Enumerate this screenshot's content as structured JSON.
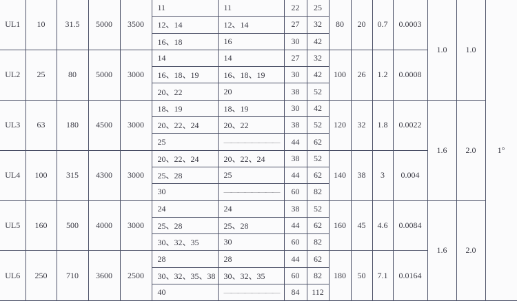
{
  "colors": {
    "grid": "#4a4f66",
    "text": "#3a3a44",
    "background": "#fbfbfc"
  },
  "groups": [
    {
      "model": "UL1",
      "c1": "10",
      "c2": "31.5",
      "c3": "5000",
      "c4": "3500",
      "rows": [
        {
          "a": "11",
          "b": "11",
          "d1": "22",
          "d2": "25"
        },
        {
          "a": "12、14",
          "b": "12、14",
          "d1": "27",
          "d2": "32"
        },
        {
          "a": "16、18",
          "b": "16",
          "d1": "30",
          "d2": "42"
        }
      ],
      "e1": "80",
      "e2": "20",
      "e3": "0.7",
      "e4": "0.0003"
    },
    {
      "model": "UL2",
      "c1": "25",
      "c2": "80",
      "c3": "5000",
      "c4": "3000",
      "rows": [
        {
          "a": "14",
          "b": "14",
          "d1": "27",
          "d2": "32"
        },
        {
          "a": "16、18、19",
          "b": "16、18、19",
          "d1": "30",
          "d2": "42"
        },
        {
          "a": "20、22",
          "b": "20",
          "d1": "38",
          "d2": "52"
        }
      ],
      "e1": "100",
      "e2": "26",
      "e3": "1.2",
      "e4": "0.0008"
    },
    {
      "model": "UL3",
      "c1": "63",
      "c2": "180",
      "c3": "4500",
      "c4": "3000",
      "rows": [
        {
          "a": "18、19",
          "b": "18、19",
          "d1": "30",
          "d2": "42"
        },
        {
          "a": "20、22、24",
          "b": "20、22",
          "d1": "38",
          "d2": "52"
        },
        {
          "a": "25",
          "b": "————————",
          "d1": "44",
          "d2": "62"
        }
      ],
      "e1": "120",
      "e2": "32",
      "e3": "1.8",
      "e4": "0.0022"
    },
    {
      "model": "UL4",
      "c1": "100",
      "c2": "315",
      "c3": "4300",
      "c4": "3000",
      "rows": [
        {
          "a": "20、22、24",
          "b": "20、22、24",
          "d1": "38",
          "d2": "52"
        },
        {
          "a": "25、28",
          "b": "25",
          "d1": "44",
          "d2": "62"
        },
        {
          "a": "30",
          "b": "————————",
          "d1": "60",
          "d2": "82"
        }
      ],
      "e1": "140",
      "e2": "38",
      "e3": "3",
      "e4": "0.004"
    },
    {
      "model": "UL5",
      "c1": "160",
      "c2": "500",
      "c3": "4000",
      "c4": "3000",
      "rows": [
        {
          "a": "24",
          "b": "24",
          "d1": "38",
          "d2": "52"
        },
        {
          "a": "25、28",
          "b": "25、28",
          "d1": "44",
          "d2": "62"
        },
        {
          "a": "30、32、35",
          "b": "30",
          "d1": "60",
          "d2": "82"
        }
      ],
      "e1": "160",
      "e2": "45",
      "e3": "4.6",
      "e4": "0.0084"
    },
    {
      "model": "UL6",
      "c1": "250",
      "c2": "710",
      "c3": "3600",
      "c4": "2500",
      "rows": [
        {
          "a": "28",
          "b": "28",
          "d1": "44",
          "d2": "62"
        },
        {
          "a": "30、32、35、38",
          "b": "30、32、35",
          "d1": "60",
          "d2": "82"
        },
        {
          "a": "40",
          "b": "————————",
          "d1": "84",
          "d2": "112"
        }
      ],
      "e1": "180",
      "e2": "50",
      "e3": "7.1",
      "e4": "0.0164"
    }
  ],
  "merged": [
    {
      "f1": "1.0",
      "f2": "1.0"
    },
    {
      "f1": "1.6",
      "f2": "2.0"
    },
    {
      "f1": "1.6",
      "f2": "2.0"
    }
  ],
  "angle": "1°"
}
